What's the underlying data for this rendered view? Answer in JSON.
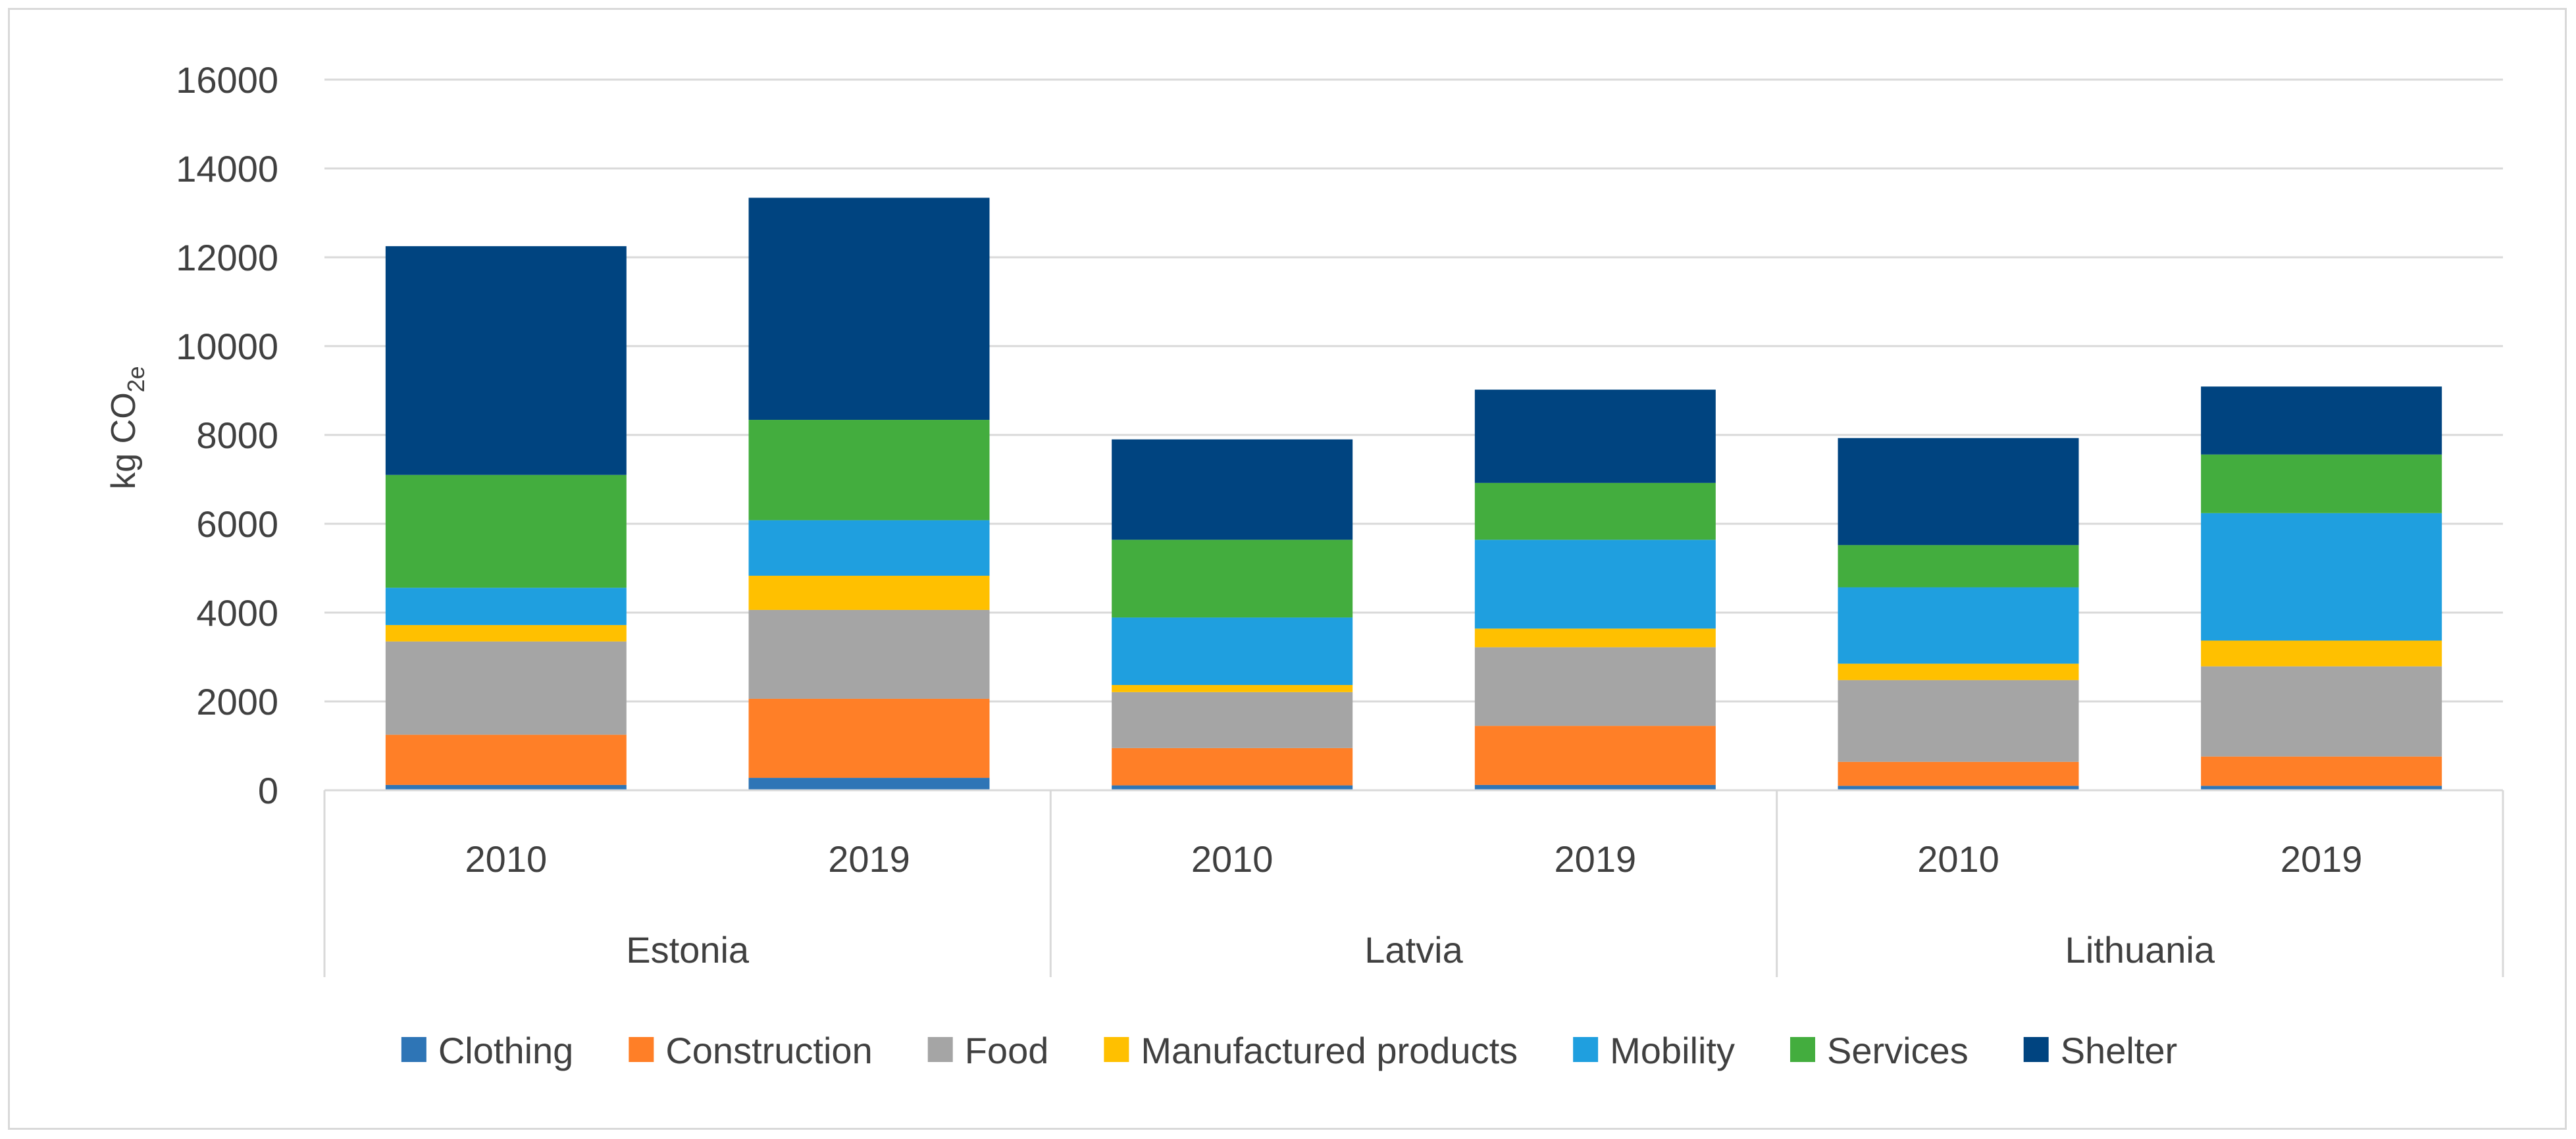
{
  "chart_data": {
    "type": "bar",
    "stacked": true,
    "title": "",
    "ylabel": "kg CO2e",
    "ylabel_main": "kg CO",
    "ylabel_sub": "2e",
    "xlabel": "",
    "ylim": [
      0,
      16000
    ],
    "yticks": [
      0,
      2000,
      4000,
      6000,
      8000,
      10000,
      12000,
      14000,
      16000
    ],
    "grid": true,
    "legend": "bottom",
    "groups": [
      {
        "name": "Estonia",
        "years": [
          "2010",
          "2019"
        ]
      },
      {
        "name": "Latvia",
        "years": [
          "2010",
          "2019"
        ]
      },
      {
        "name": "Lithuania",
        "years": [
          "2010",
          "2019"
        ]
      }
    ],
    "categories": [
      "Estonia 2010",
      "Estonia 2019",
      "Latvia 2010",
      "Latvia 2019",
      "Lithuania 2010",
      "Lithuania 2019"
    ],
    "series": [
      {
        "name": "Clothing",
        "color": "#2e75b6",
        "values": [
          120,
          280,
          110,
          120,
          100,
          100
        ]
      },
      {
        "name": "Construction",
        "color": "#ff7f27",
        "values": [
          1130,
          1780,
          840,
          1330,
          540,
          660
        ]
      },
      {
        "name": "Food",
        "color": "#a5a5a5",
        "values": [
          2100,
          2000,
          1260,
          1770,
          1840,
          2030
        ]
      },
      {
        "name": "Manufactured products",
        "color": "#ffc000",
        "values": [
          370,
          770,
          160,
          420,
          370,
          580
        ]
      },
      {
        "name": "Mobility",
        "color": "#1f9fdf",
        "values": [
          840,
          1250,
          1520,
          2000,
          1720,
          2870
        ]
      },
      {
        "name": "Services",
        "color": "#43ad3e",
        "values": [
          2540,
          2260,
          1750,
          1280,
          950,
          1320
        ]
      },
      {
        "name": "Shelter",
        "color": "#004480",
        "values": [
          5150,
          5000,
          2260,
          2100,
          2410,
          1530
        ]
      }
    ]
  }
}
